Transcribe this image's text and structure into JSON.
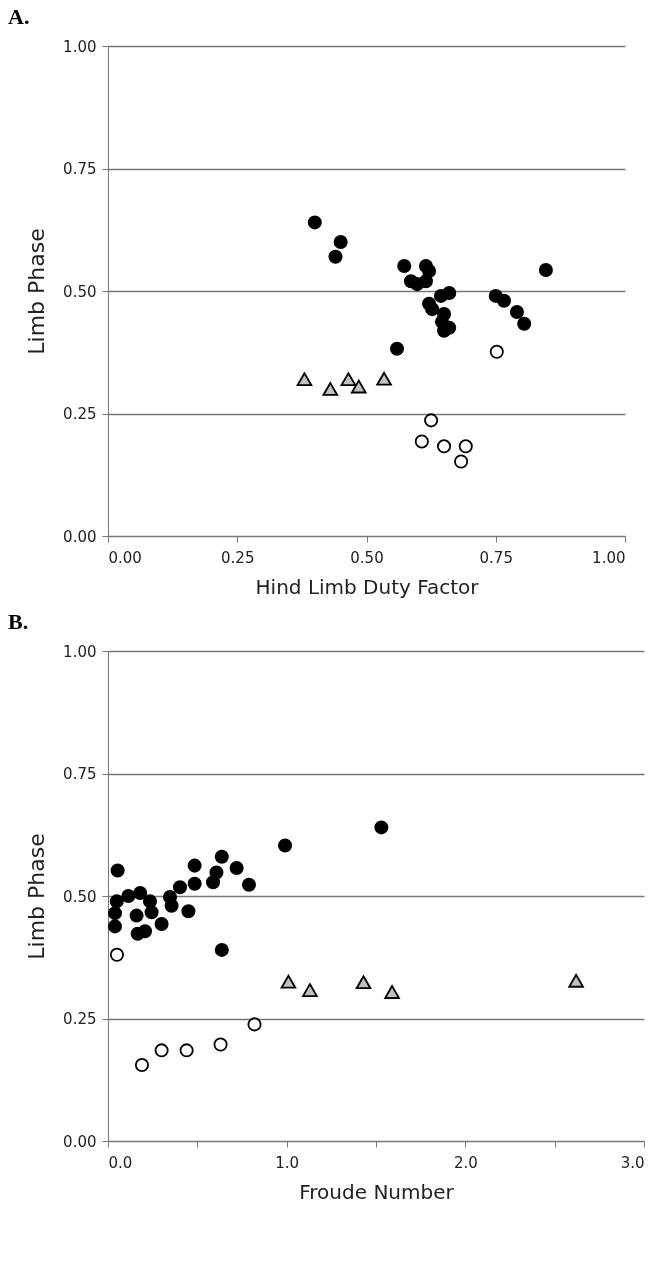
{
  "chart_data": [
    {
      "type": "scatter",
      "title": "A.",
      "xlabel": "Hind Limb Duty Factor",
      "ylabel": "Limb Phase",
      "grid": "y",
      "xlim": [
        0,
        1
      ],
      "xticks": [
        {
          "value": 0,
          "label": "0.00"
        },
        {
          "value": 0.25,
          "label": "0.25"
        },
        {
          "value": 0.5,
          "label": "0.50"
        },
        {
          "value": 0.75,
          "label": "0.75"
        },
        {
          "value": 1,
          "label": "1.00"
        }
      ],
      "ylim": [
        0,
        1
      ],
      "yticks": [
        {
          "value": 0,
          "label": "0.00"
        },
        {
          "value": 0.25,
          "label": "0.25"
        },
        {
          "value": 0.5,
          "label": "0.50"
        },
        {
          "value": 0.75,
          "label": "0.75"
        },
        {
          "value": 1,
          "label": "1.00"
        }
      ],
      "series": [
        {
          "color": "#000000",
          "marker": "circle",
          "x": [
            0.4,
            0.45,
            0.44,
            0.573,
            0.615,
            0.621,
            0.847,
            0.586,
            0.598,
            0.615,
            0.66,
            0.644,
            0.621,
            0.627,
            0.65,
            0.646,
            0.66,
            0.65,
            0.75,
            0.766,
            0.791,
            0.805,
            0.559
          ],
          "values": [
            0.64,
            0.6,
            0.57,
            0.551,
            0.551,
            0.541,
            0.543,
            0.52,
            0.514,
            0.52,
            0.496,
            0.49,
            0.474,
            0.463,
            0.453,
            0.437,
            0.425,
            0.419,
            0.49,
            0.48,
            0.457,
            0.433,
            0.382
          ]
        },
        {
          "color": "#c0c0c0",
          "marker": "triangle",
          "x": [
            0.38,
            0.43,
            0.465,
            0.485,
            0.534
          ],
          "values": [
            0.32,
            0.3,
            0.32,
            0.305,
            0.321
          ]
        },
        {
          "color": "#ffffff",
          "marker": "circle",
          "x": [
            0.625,
            0.607,
            0.65,
            0.692,
            0.683,
            0.752
          ],
          "values": [
            0.236,
            0.193,
            0.183,
            0.183,
            0.152,
            0.376
          ]
        }
      ]
    },
    {
      "type": "scatter",
      "title": "B.",
      "xlabel": "Froude Number",
      "ylabel": "Limb Phase",
      "grid": "y",
      "xlim": [
        0,
        3
      ],
      "xticks": [
        {
          "value": 0,
          "label": "0.0"
        },
        {
          "value": 0.5,
          "label": null
        },
        {
          "value": 1,
          "label": "1.0"
        },
        {
          "value": 1.5,
          "label": null
        },
        {
          "value": 2,
          "label": "2.0"
        },
        {
          "value": 2.5,
          "label": null
        },
        {
          "value": 3,
          "label": "3.0"
        }
      ],
      "ylim": [
        0,
        1
      ],
      "yticks": [
        {
          "value": 0,
          "label": "0.00"
        },
        {
          "value": 0.25,
          "label": "0.25"
        },
        {
          "value": 0.5,
          "label": "0.50"
        },
        {
          "value": 0.75,
          "label": "0.75"
        },
        {
          "value": 1,
          "label": "1.00"
        }
      ],
      "series": [
        {
          "color": "#000000",
          "marker": "circle",
          "x": [
            0.054,
            0.991,
            0.637,
            0.485,
            0.72,
            0.607,
            0.588,
            0.485,
            0.789,
            0.403,
            0.18,
            0.114,
            0.049,
            0.235,
            0.347,
            0.356,
            0.244,
            0.45,
            0.039,
            0.16,
            0.039,
            0.3,
            0.207,
            0.166,
            0.637,
            1.53
          ],
          "values": [
            0.552,
            0.603,
            0.58,
            0.562,
            0.557,
            0.548,
            0.528,
            0.525,
            0.523,
            0.518,
            0.506,
            0.5,
            0.489,
            0.489,
            0.498,
            0.48,
            0.467,
            0.469,
            0.465,
            0.46,
            0.438,
            0.443,
            0.428,
            0.423,
            0.39,
            0.64
          ]
        },
        {
          "color": "#c0c0c0",
          "marker": "triangle",
          "x": [
            1.01,
            1.13,
            1.43,
            1.59,
            2.62
          ],
          "values": [
            0.325,
            0.308,
            0.324,
            0.304,
            0.327
          ]
        },
        {
          "color": "#ffffff",
          "marker": "circle",
          "x": [
            0.05,
            0.19,
            0.3,
            0.44,
            0.63,
            0.82
          ],
          "values": [
            0.38,
            0.155,
            0.185,
            0.185,
            0.197,
            0.238
          ]
        }
      ]
    }
  ]
}
